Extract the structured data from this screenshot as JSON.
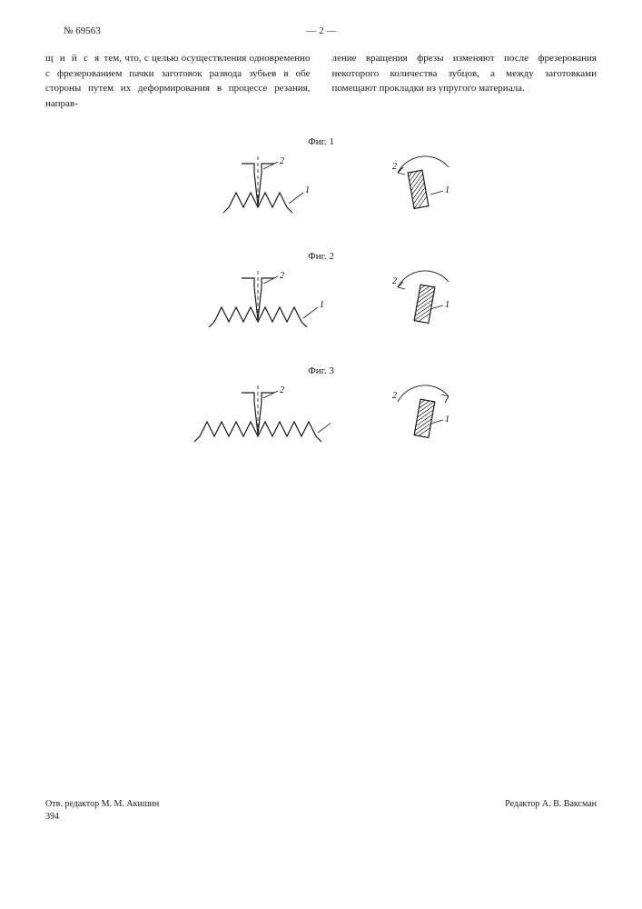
{
  "header": {
    "doc_number": "№ 69563",
    "page_indicator": "— 2 —"
  },
  "body": {
    "col1_leadword": "щ и й с я",
    "col1_rest": " тем, что, с целью осуществления одновременно с фрезерованием пачки заготовок развода зубьев в обе стороны путем их деформирования в процессе резания, направ-",
    "col2": "ление вращения фрезы изменяют после фрезерования некоторого количества зубцов, а между заготовками помещают прокладки из упругого материала."
  },
  "figures": {
    "stroke": "#1a1a1a",
    "fill_hatch": "#1a1a1a",
    "label_fontsize": 11,
    "items": [
      {
        "label": "Фиг. 1",
        "tooth_count": 4,
        "tilt_dir": "left",
        "arrow_dir": "left"
      },
      {
        "label": "Фиг. 2",
        "tooth_count": 6,
        "tilt_dir": "right",
        "arrow_dir": "left"
      },
      {
        "label": "Фиг. 3",
        "tooth_count": 8,
        "tilt_dir": "right",
        "arrow_dir": "right"
      }
    ],
    "label_1": "1",
    "label_2": "2"
  },
  "footer": {
    "left": "Отв. редактор М. М. Акишин",
    "right": "Редактор А. В. Ваксман",
    "num": "394"
  }
}
